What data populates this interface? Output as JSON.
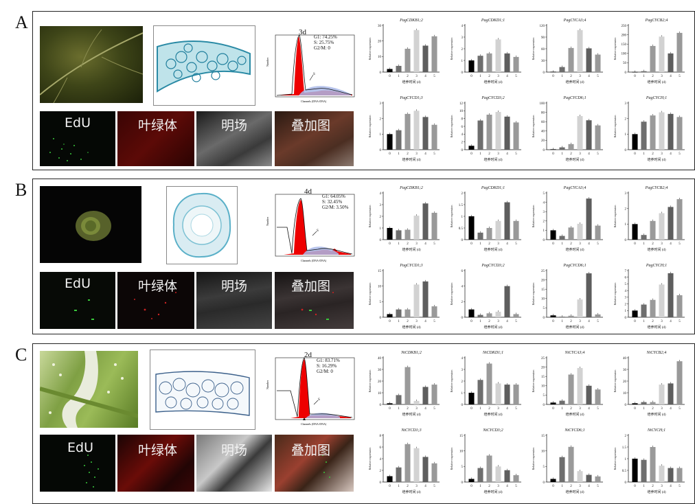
{
  "panels": [
    {
      "letter": "A",
      "tiles": {
        "edu": "EdU",
        "chl": "叶绿体",
        "bf": "明场",
        "merge": "叠加图"
      },
      "flow": {
        "day": "3d",
        "g1": "G1: 74.25%",
        "s": "S: 25.75%",
        "g2m": "G2/M: 0"
      },
      "genes": [
        "PagCDKB1;2",
        "PagCDKD1;1",
        "PagCYCA3;4",
        "PagCYCB2;4",
        "PagCYCD1;3",
        "PagCYCD3;2",
        "PagCYCD6;1",
        "PagCYCH;1"
      ],
      "charts": [
        {
          "ylim": [
            0,
            30
          ],
          "ticks": [
            0,
            10,
            20,
            30
          ],
          "values": [
            2,
            4,
            15,
            27,
            17,
            23
          ]
        },
        {
          "ylim": [
            0,
            4
          ],
          "ticks": [
            0,
            1,
            2,
            3,
            4
          ],
          "values": [
            1,
            1.4,
            1.6,
            2.8,
            1.6,
            1.3
          ]
        },
        {
          "ylim": [
            0,
            120
          ],
          "ticks": [
            0,
            30,
            60,
            90,
            120
          ],
          "values": [
            1,
            13,
            62,
            108,
            61,
            45
          ]
        },
        {
          "ylim": [
            0,
            250
          ],
          "ticks": [
            0,
            50,
            100,
            150,
            200,
            250
          ],
          "values": [
            1,
            5,
            140,
            190,
            100,
            210
          ]
        },
        {
          "ylim": [
            0,
            3
          ],
          "ticks": [
            0,
            1,
            2,
            3
          ],
          "values": [
            1,
            1.25,
            2.3,
            2.5,
            2.1,
            1.6
          ]
        },
        {
          "ylim": [
            0,
            12
          ],
          "ticks": [
            0,
            2,
            4,
            6,
            8,
            10,
            12
          ],
          "values": [
            1,
            7.5,
            9,
            9.7,
            8.5,
            7
          ]
        },
        {
          "ylim": [
            0,
            100
          ],
          "ticks": [
            0,
            20,
            40,
            60,
            80,
            100
          ],
          "values": [
            1,
            5,
            12,
            72,
            63,
            52
          ]
        },
        {
          "ylim": [
            0,
            3
          ],
          "ticks": [
            0,
            1,
            2,
            3
          ],
          "values": [
            1,
            1.8,
            2.2,
            2.4,
            2.3,
            2.1
          ]
        }
      ]
    },
    {
      "letter": "B",
      "tiles": {
        "edu": "EdU",
        "chl": "叶绿体",
        "bf": "明场",
        "merge": "叠加图"
      },
      "flow": {
        "day": "4d",
        "g1": "G1: 64.05%",
        "s": "S: 32.45%",
        "g2m": "G2/M: 3.50%"
      },
      "genes": [
        "PagCDKB1;2",
        "PagCDKD1;1",
        "PagCYCA3;4",
        "PagCYCB2;4",
        "PagCYCD1;3",
        "PagCYCD3;2",
        "PagCYCD6;1",
        "PagCYCH;1"
      ],
      "charts": [
        {
          "ylim": [
            0,
            4
          ],
          "ticks": [
            0,
            1,
            2,
            3,
            4
          ],
          "values": [
            1,
            0.8,
            0.85,
            2.05,
            3.1,
            2.3
          ]
        },
        {
          "ylim": [
            0,
            2
          ],
          "ticks": [
            0,
            0.5,
            1.0,
            1.5,
            2.0
          ],
          "values": [
            1,
            0.3,
            0.5,
            0.8,
            1.6,
            0.8
          ]
        },
        {
          "ylim": [
            0,
            5
          ],
          "ticks": [
            0,
            1,
            2,
            3,
            4,
            5
          ],
          "values": [
            1,
            0.4,
            1.3,
            1.7,
            4.4,
            1.5
          ]
        },
        {
          "ylim": [
            0,
            3
          ],
          "ticks": [
            0,
            1,
            2,
            3
          ],
          "values": [
            1,
            0.3,
            1.2,
            1.7,
            2.1,
            2.6
          ]
        },
        {
          "ylim": [
            0,
            15
          ],
          "ticks": [
            0,
            5,
            10,
            15
          ],
          "values": [
            1,
            2.5,
            2.5,
            10.5,
            11.5,
            3.5
          ]
        },
        {
          "ylim": [
            0,
            6
          ],
          "ticks": [
            0,
            2,
            4,
            6
          ],
          "values": [
            1,
            0.3,
            0.5,
            0.7,
            4,
            0.4
          ]
        },
        {
          "ylim": [
            0,
            25
          ],
          "ticks": [
            0,
            5,
            10,
            15,
            20,
            25
          ],
          "values": [
            1,
            0.3,
            0.8,
            9.5,
            23.5,
            1.5
          ]
        },
        {
          "ylim": [
            0,
            7
          ],
          "ticks": [
            0,
            1,
            2,
            3,
            4,
            5,
            6,
            7
          ],
          "values": [
            1,
            1.9,
            2.6,
            4.9,
            6.6,
            3.3
          ]
        }
      ]
    },
    {
      "letter": "C",
      "tiles": {
        "edu": "EdU",
        "chl": "叶绿体",
        "bf": "明场",
        "merge": "叠加图"
      },
      "flow": {
        "day": "2d",
        "g1": "G1: 83.71%",
        "s": "S: 16.29%",
        "g2m": "G2/M: 0"
      },
      "genes": [
        "NtCDKB1;2",
        "NtCDKD1;1",
        "NtCYCA3;4",
        "NtCYCB2;4",
        "NtCYCD1;3",
        "NtCYCD3;2",
        "NtCYCD6;1",
        "NtCYCH;1"
      ],
      "charts": [
        {
          "ylim": [
            0,
            40
          ],
          "ticks": [
            0,
            10,
            20,
            30,
            40
          ],
          "values": [
            1,
            8,
            32,
            3,
            15,
            17
          ]
        },
        {
          "ylim": [
            0,
            4
          ],
          "ticks": [
            0,
            1,
            2,
            3,
            4
          ],
          "values": [
            1,
            2.1,
            3.5,
            1.8,
            1.7,
            1.7
          ]
        },
        {
          "ylim": [
            0,
            25
          ],
          "ticks": [
            0,
            5,
            10,
            15,
            20,
            25
          ],
          "values": [
            1,
            2,
            16,
            19.5,
            10,
            8
          ]
        },
        {
          "ylim": [
            0,
            40
          ],
          "ticks": [
            0,
            10,
            20,
            30,
            40
          ],
          "values": [
            1,
            2,
            2,
            17,
            18,
            37
          ]
        },
        {
          "ylim": [
            0,
            8
          ],
          "ticks": [
            0,
            2,
            4,
            6,
            8
          ],
          "values": [
            1,
            2.5,
            6.5,
            5.8,
            4.3,
            3.2
          ]
        },
        {
          "ylim": [
            0,
            15
          ],
          "ticks": [
            0,
            5,
            10,
            15
          ],
          "values": [
            1,
            4.5,
            8.5,
            5,
            3.8,
            2.2
          ]
        },
        {
          "ylim": [
            0,
            15
          ],
          "ticks": [
            0,
            5,
            10,
            15
          ],
          "values": [
            1,
            8,
            11.3,
            3.5,
            2.3,
            1.8
          ]
        },
        {
          "ylim": [
            0,
            2
          ],
          "ticks": [
            0,
            0.5,
            1.0,
            1.5,
            2.0
          ],
          "values": [
            1,
            0.95,
            1.5,
            0.7,
            0.6,
            0.6
          ]
        }
      ]
    }
  ],
  "chart_common": {
    "ylabel": "Relative expression",
    "xlabel": "培养时间 (d)",
    "categories": [
      "0",
      "1",
      "2",
      "3",
      "4",
      "5"
    ],
    "bar_colors": [
      "#000000",
      "#6e6e6e",
      "#9a9a9a",
      "#d2d2d2",
      "#5e5e5e",
      "#999999"
    ]
  },
  "chart_data": {
    "type": "bar",
    "note_ref": "panels[].charts",
    "categories": [
      "0",
      "1",
      "2",
      "3",
      "4",
      "5"
    ],
    "xlabel": "培养时间 (d)",
    "ylabel": "Relative expression"
  }
}
